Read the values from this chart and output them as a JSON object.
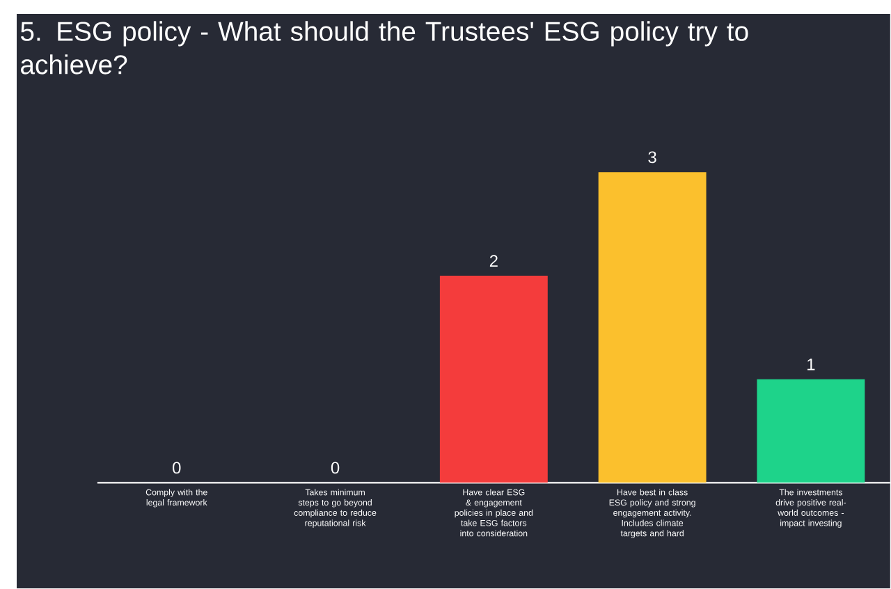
{
  "chart_data": {
    "type": "bar",
    "title": "5. ESG policy - What should the Trustees' ESG policy try to achieve?",
    "categories": [
      "Comply with the legal framework",
      "Takes minimum steps to go beyond compliance to reduce reputational risk",
      "Have clear ESG & engagement policies in place and take ESG factors into consideration",
      "Have best in class ESG policy and strong engagement activity. Includes climate targets and hard",
      "The investments drive positive real-world outcomes - impact investing"
    ],
    "values": [
      0,
      0,
      2,
      3,
      1
    ],
    "colors": [
      "#9e9e9e",
      "#9e9e9e",
      "#f43c3c",
      "#fbc02d",
      "#1ed38a"
    ],
    "data_labels": true
  }
}
